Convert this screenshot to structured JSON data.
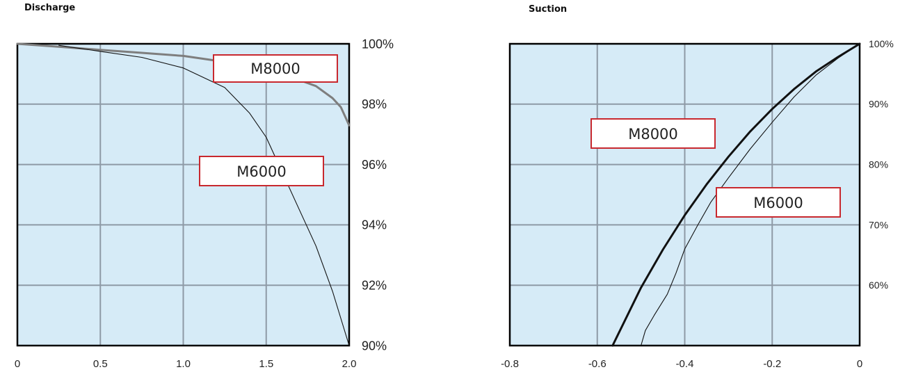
{
  "colors": {
    "plot_bg": "#d6ebf7",
    "grid": "#8e9aa6",
    "axis": "#000000",
    "label_border": "#c8282e",
    "m8000_discharge": "#7e7e7e",
    "m8000_suction": "#111111",
    "m6000": "#111111",
    "text": "#222222"
  },
  "chart_data": [
    {
      "type": "line",
      "title": "Discharge",
      "xlim": [
        0,
        2.0
      ],
      "ylim": [
        90,
        100
      ],
      "x_ticks": [
        "0",
        "0.5",
        "1.0",
        "1.5",
        "2.0"
      ],
      "y_ticks": [
        "90%",
        "92%",
        "94%",
        "96%",
        "98%",
        "100%"
      ],
      "y_axis_side": "right",
      "grid": true,
      "series": [
        {
          "name": "M8000",
          "x": [
            0,
            0.25,
            0.5,
            0.75,
            1.0,
            1.25,
            1.5,
            1.7,
            1.8,
            1.9,
            1.95,
            2.0
          ],
          "y": [
            100,
            99.9,
            99.8,
            99.7,
            99.6,
            99.4,
            99.1,
            98.8,
            98.6,
            98.2,
            97.9,
            97.3
          ]
        },
        {
          "name": "M6000",
          "x": [
            0.25,
            0.5,
            0.75,
            1.0,
            1.25,
            1.4,
            1.5,
            1.6,
            1.7,
            1.8,
            1.9,
            2.0
          ],
          "y": [
            99.95,
            99.75,
            99.55,
            99.2,
            98.55,
            97.7,
            96.9,
            95.7,
            94.5,
            93.3,
            91.8,
            90.0
          ]
        }
      ],
      "annotations": [
        "M8000",
        "M6000"
      ]
    },
    {
      "type": "line",
      "title": "Suction",
      "xlim": [
        -0.8,
        0
      ],
      "ylim": [
        50,
        100
      ],
      "x_ticks": [
        "-0.8",
        "-0.6",
        "-0.4",
        "-0.2",
        "0"
      ],
      "y_ticks": [
        "60%",
        "70%",
        "80%",
        "90%",
        "100%"
      ],
      "y_axis_side": "right",
      "grid": true,
      "series": [
        {
          "name": "M8000",
          "x": [
            -0.565,
            -0.5,
            -0.45,
            -0.4,
            -0.35,
            -0.3,
            -0.25,
            -0.2,
            -0.15,
            -0.1,
            -0.05,
            0
          ],
          "y": [
            50,
            59.6,
            65.9,
            71.6,
            76.7,
            81.3,
            85.5,
            89.2,
            92.5,
            95.4,
            97.8,
            100
          ]
        },
        {
          "name": "M6000",
          "x": [
            -0.5,
            -0.49,
            -0.47,
            -0.44,
            -0.42,
            -0.4,
            -0.37,
            -0.34,
            -0.3,
            -0.25,
            -0.2,
            -0.15,
            -0.1,
            -0.05,
            0
          ],
          "y": [
            50,
            52.5,
            55,
            58.5,
            62,
            66,
            70,
            73.8,
            77.8,
            82.6,
            87,
            91.2,
            94.8,
            97.6,
            100
          ]
        }
      ],
      "annotations": [
        "M8000",
        "M6000"
      ]
    }
  ]
}
